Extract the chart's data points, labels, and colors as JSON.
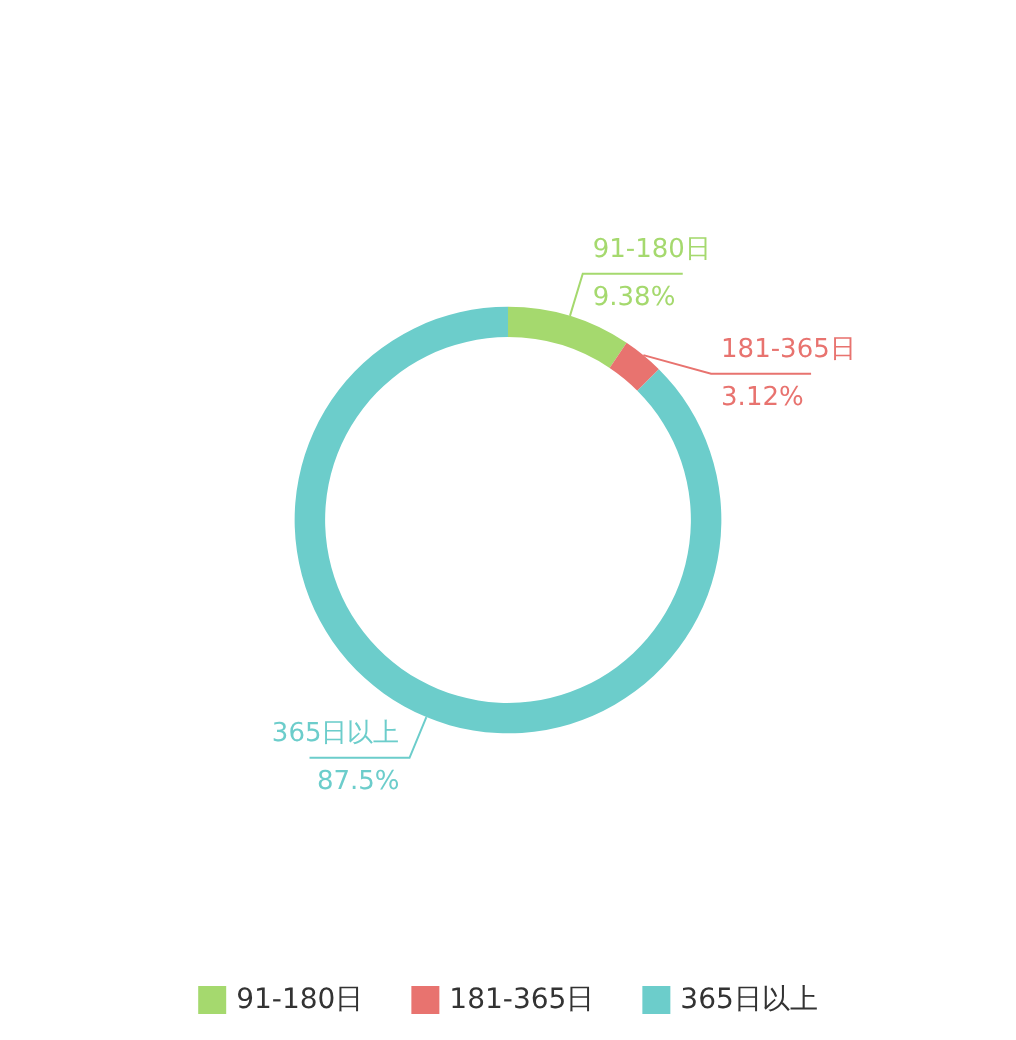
{
  "chart_data": {
    "type": "donut",
    "categories": [
      "91-180日",
      "181-365日",
      "365日以上"
    ],
    "values": [
      9.38,
      3.12,
      87.5
    ],
    "value_labels": [
      "9.38%",
      "3.12%",
      "87.5%"
    ],
    "colors": [
      "#a5d96e",
      "#e8736f",
      "#6ccdcb"
    ],
    "legend": "bottom"
  }
}
